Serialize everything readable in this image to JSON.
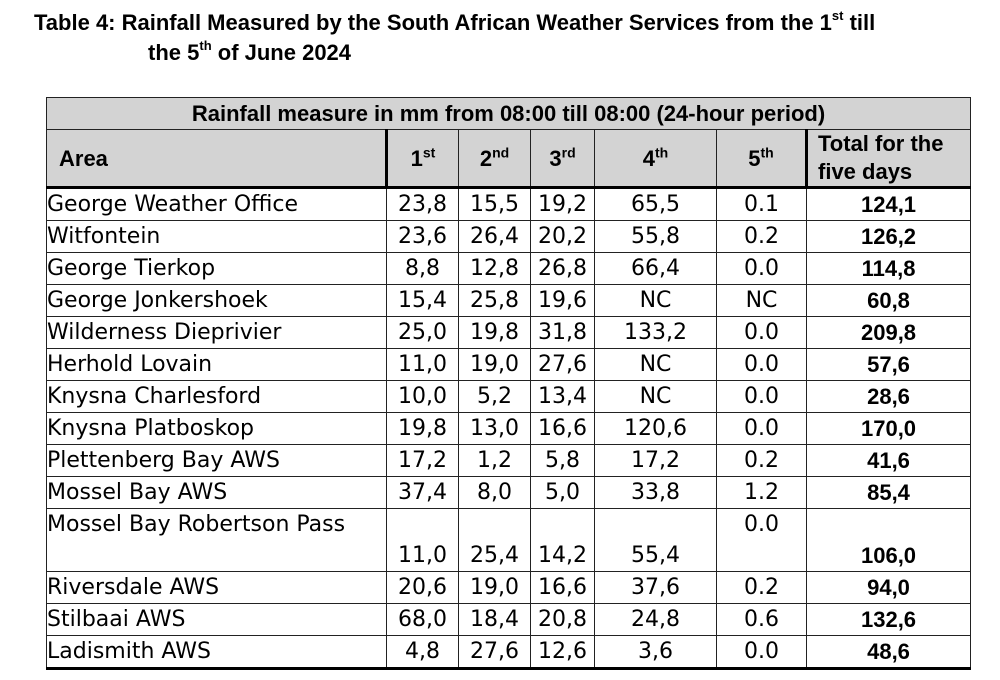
{
  "title": {
    "prefix": "Table 4: Rainfall Measured by the South African Weather Services from the 1",
    "sup1": "st",
    "mid": " till",
    "line2_pre": "the 5",
    "sup2": "th",
    "line2_post": " of June 2024"
  },
  "table": {
    "banner": "Rainfall measure in mm from 08:00 till 08:00 (24-hour period)",
    "headers": {
      "area": "Area",
      "d1": "1",
      "d1_sup": "st",
      "d2": "2",
      "d2_sup": "nd",
      "d3": "3",
      "d3_sup": "rd",
      "d4": "4",
      "d4_sup": "th",
      "d5": "5",
      "d5_sup": "th",
      "total_l1": "Total for the",
      "total_l2": "five days"
    },
    "rows": [
      {
        "area": "George Weather Office",
        "d1": "23,8",
        "d2": "15,5",
        "d3": "19,2",
        "d4": "65,5",
        "d5": "0.1",
        "total": "124,1"
      },
      {
        "area": "Witfontein",
        "d1": "23,6",
        "d2": "26,4",
        "d3": "20,2",
        "d4": "55,8",
        "d5": "0.2",
        "total": "126,2"
      },
      {
        "area": "George Tierkop",
        "d1": "8,8",
        "d2": "12,8",
        "d3": "26,8",
        "d4": "66,4",
        "d5": "0.0",
        "total": "114,8"
      },
      {
        "area": "George Jonkershoek",
        "d1": "15,4",
        "d2": "25,8",
        "d3": "19,6",
        "d4": "NC",
        "d5": "NC",
        "total": "60,8"
      },
      {
        "area": "Wilderness Dieprivier",
        "d1": "25,0",
        "d2": "19,8",
        "d3": "31,8",
        "d4": "133,2",
        "d5": "0.0",
        "total": "209,8"
      },
      {
        "area": "Herhold Lovain",
        "d1": "11,0",
        "d2": "19,0",
        "d3": "27,6",
        "d4": "NC",
        "d5": "0.0",
        "total": "57,6"
      },
      {
        "area": "Knysna Charlesford",
        "d1": "10,0",
        "d2": "5,2",
        "d3": "13,4",
        "d4": "NC",
        "d5": "0.0",
        "total": "28,6"
      },
      {
        "area": "Knysna Platboskop",
        "d1": "19,8",
        "d2": "13,0",
        "d3": "16,6",
        "d4": "120,6",
        "d5": "0.0",
        "total": "170,0"
      },
      {
        "area": "Plettenberg Bay AWS",
        "d1": "17,2",
        "d2": "1,2",
        "d3": "5,8",
        "d4": "17,2",
        "d5": "0.2",
        "total": "41,6"
      },
      {
        "area": "Mossel Bay AWS",
        "d1": "37,4",
        "d2": "8,0",
        "d3": "5,0",
        "d4": "33,8",
        "d5": "1.2",
        "total": "85,4"
      },
      {
        "area": "Mossel Bay Robertson Pass",
        "d1": "11,0",
        "d2": "25,4",
        "d3": "14,2",
        "d4": "55,4",
        "d5": "0.0",
        "total": "106,0"
      },
      {
        "area": "Riversdale AWS",
        "d1": "20,6",
        "d2": "19,0",
        "d3": "16,6",
        "d4": "37,6",
        "d5": "0.2",
        "total": "94,0"
      },
      {
        "area": "Stilbaai AWS",
        "d1": "68,0",
        "d2": "18,4",
        "d3": "20,8",
        "d4": "24,8",
        "d5": "0.6",
        "total": "132,6"
      },
      {
        "area": "Ladismith AWS",
        "d1": "4,8",
        "d2": "27,6",
        "d3": "12,6",
        "d4": "3,6",
        "d5": "0.0",
        "total": "48,6"
      }
    ]
  }
}
